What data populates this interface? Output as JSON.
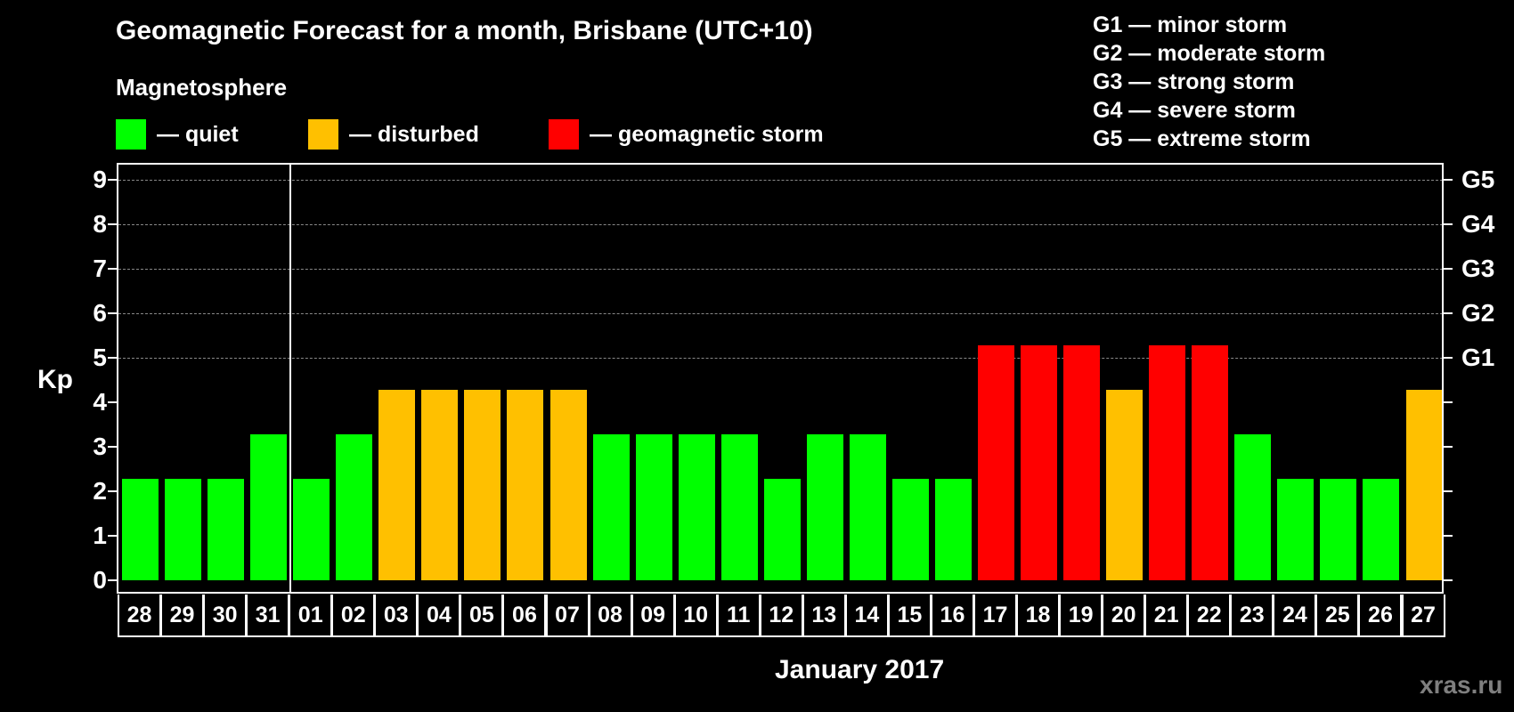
{
  "chart_data": {
    "type": "bar",
    "title": "Geomagnetic Forecast for a month, Brisbane (UTC+10)",
    "subtitle": "Magnetosphere",
    "xlabel": "January 2017",
    "ylabel": "Kp",
    "ylim": [
      0,
      9
    ],
    "yticks": [
      0,
      1,
      2,
      3,
      4,
      5,
      6,
      7,
      8,
      9
    ],
    "grid": "dashed horizontal at Kp 5-9",
    "legend_position": "top",
    "legend": [
      {
        "label": "— quiet",
        "color": "#00ff00"
      },
      {
        "label": "— disturbed",
        "color": "#ffc000"
      },
      {
        "label": "— geomagnetic storm",
        "color": "#ff0000"
      }
    ],
    "storm_scale": [
      {
        "level": "G1",
        "kp": 5,
        "label": "G1 — minor storm"
      },
      {
        "level": "G2",
        "kp": 6,
        "label": "G2 — moderate storm"
      },
      {
        "level": "G3",
        "kp": 7,
        "label": "G3 — strong storm"
      },
      {
        "level": "G4",
        "kp": 8,
        "label": "G4 — severe storm"
      },
      {
        "level": "G5",
        "kp": 9,
        "label": "G5 — extreme storm"
      }
    ],
    "categories": [
      "28",
      "29",
      "30",
      "31",
      "01",
      "02",
      "03",
      "04",
      "05",
      "06",
      "07",
      "08",
      "09",
      "10",
      "11",
      "12",
      "13",
      "14",
      "15",
      "16",
      "17",
      "18",
      "19",
      "20",
      "21",
      "22",
      "23",
      "24",
      "25",
      "26",
      "27"
    ],
    "values": [
      2,
      2,
      2,
      3,
      2,
      3,
      4,
      4,
      4,
      4,
      4,
      3,
      3,
      3,
      3,
      2,
      3,
      3,
      2,
      2,
      5,
      5,
      5,
      4,
      5,
      5,
      3,
      2,
      2,
      2,
      4
    ],
    "status": [
      "quiet",
      "quiet",
      "quiet",
      "quiet",
      "quiet",
      "quiet",
      "disturbed",
      "disturbed",
      "disturbed",
      "disturbed",
      "disturbed",
      "quiet",
      "quiet",
      "quiet",
      "quiet",
      "quiet",
      "quiet",
      "quiet",
      "quiet",
      "quiet",
      "storm",
      "storm",
      "storm",
      "disturbed",
      "storm",
      "storm",
      "quiet",
      "quiet",
      "quiet",
      "quiet",
      "disturbed"
    ],
    "month_divider_after": "31"
  },
  "colors": {
    "quiet": "#00ff00",
    "disturbed": "#ffc000",
    "storm": "#ff0000",
    "background": "#000000",
    "grid": "#888888",
    "watermark": "#7f7f7f"
  },
  "header": {
    "title": "Geomagnetic Forecast for a month, Brisbane (UTC+10)",
    "subtitle": "Magnetosphere",
    "legend": {
      "quiet": "— quiet",
      "disturbed": "— disturbed",
      "storm": "— geomagnetic storm"
    },
    "storm_legend": [
      "G1 — minor storm",
      "G2 — moderate storm",
      "G3 — strong storm",
      "G4 — severe storm",
      "G5 — extreme storm"
    ]
  },
  "axes": {
    "ylabel": "Kp",
    "xlabel": "January 2017",
    "right_labels": [
      "G1",
      "G2",
      "G3",
      "G4",
      "G5"
    ]
  },
  "watermark": "xras.ru"
}
